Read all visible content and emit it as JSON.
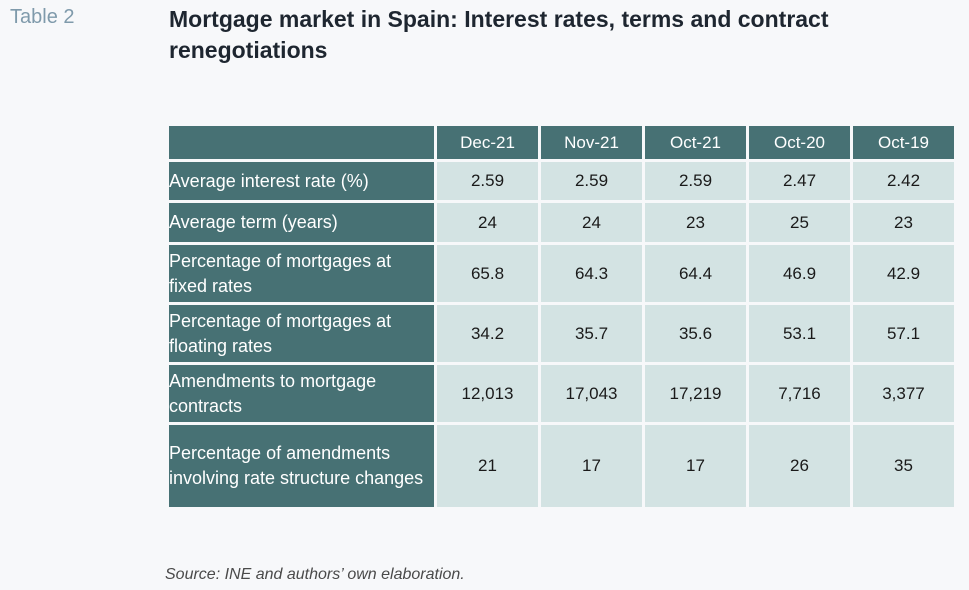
{
  "table_label": "Table 2",
  "title": "Mortgage market in Spain: Interest rates, terms and contract renegotiations",
  "table": {
    "columns": [
      "Dec-21",
      "Nov-21",
      "Oct-21",
      "Oct-20",
      "Oct-19"
    ],
    "rows": [
      {
        "label": "Average interest rate (%)",
        "values": [
          "2.59",
          "2.59",
          "2.59",
          "2.47",
          "2.42"
        ]
      },
      {
        "label": "Average term (years)",
        "values": [
          "24",
          "24",
          "23",
          "25",
          "23"
        ]
      },
      {
        "label": "Percentage of mortgages at fixed rates",
        "values": [
          "65.8",
          "64.3",
          "64.4",
          "46.9",
          "42.9"
        ]
      },
      {
        "label": "Percentage of mortgages at floating rates",
        "values": [
          "34.2",
          "35.7",
          "35.6",
          "53.1",
          "57.1"
        ]
      },
      {
        "label": "Amendments to mortgage contracts",
        "values": [
          "12,013",
          "17,043",
          "17,219",
          "7,716",
          "3,377"
        ]
      },
      {
        "label": "Percentage of amendments involving rate structure changes",
        "values": [
          "21",
          "17",
          "17",
          "26",
          "35"
        ]
      }
    ]
  },
  "source": "Source: INE and authors’ own elaboration.",
  "colors": {
    "header_bg": "#477174",
    "cell_bg": "#d3e3e3",
    "label_color": "#7f9aab",
    "title_color": "#1e2630"
  }
}
